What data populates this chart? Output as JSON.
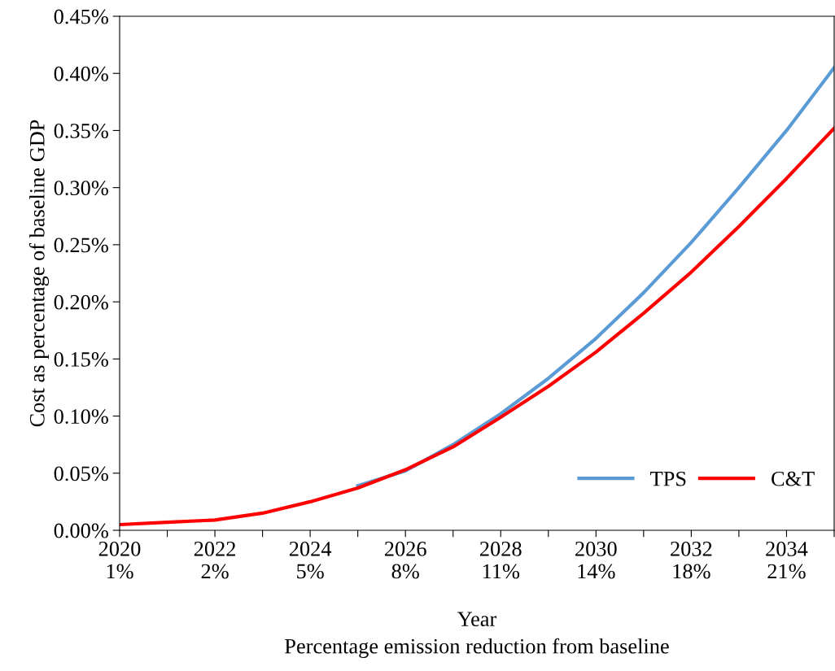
{
  "chart_data": {
    "type": "line",
    "categories": [
      "2020\n1%",
      null,
      "2022\n2%",
      null,
      "2024\n5%",
      null,
      "2026\n8%",
      null,
      "2028\n11%",
      null,
      "2030\n14%",
      null,
      "2032\n18%",
      null,
      "2034\n21%",
      null
    ],
    "xlabel": "Year\nPercentage emission reduction from baseline",
    "ylabel": "Cost as percentage of baseline GDP",
    "ylim": [
      0,
      0.45
    ],
    "yticks": [
      {
        "value": 0,
        "label": "0.00%"
      },
      {
        "value": 0.05,
        "label": "0.05%"
      },
      {
        "value": 0.1,
        "label": "0.10%"
      },
      {
        "value": 0.15,
        "label": "0.15%"
      },
      {
        "value": 0.2,
        "label": "0.20%"
      },
      {
        "value": 0.25,
        "label": "0.25%"
      },
      {
        "value": 0.3,
        "label": "0.30%"
      },
      {
        "value": 0.35,
        "label": "0.35%"
      },
      {
        "value": 0.4,
        "label": "0.40%"
      },
      {
        "value": 0.45,
        "label": "0.45%"
      }
    ],
    "series": [
      {
        "name": "TPS",
        "color": "#5b9bd5",
        "values": [
          null,
          null,
          null,
          null,
          null,
          0.039,
          0.052,
          0.075,
          0.102,
          0.133,
          0.168,
          0.208,
          0.252,
          0.3,
          0.35,
          0.405
        ]
      },
      {
        "name": "C&T",
        "color": "#ff0000",
        "values": [
          0.005,
          0.007,
          0.009,
          0.015,
          0.025,
          0.037,
          0.053,
          0.073,
          0.099,
          0.126,
          0.156,
          0.19,
          0.226,
          0.266,
          0.308,
          0.352
        ]
      }
    ],
    "legend": "bottom right",
    "grid": false,
    "marker": "none",
    "line_style": "solid"
  }
}
